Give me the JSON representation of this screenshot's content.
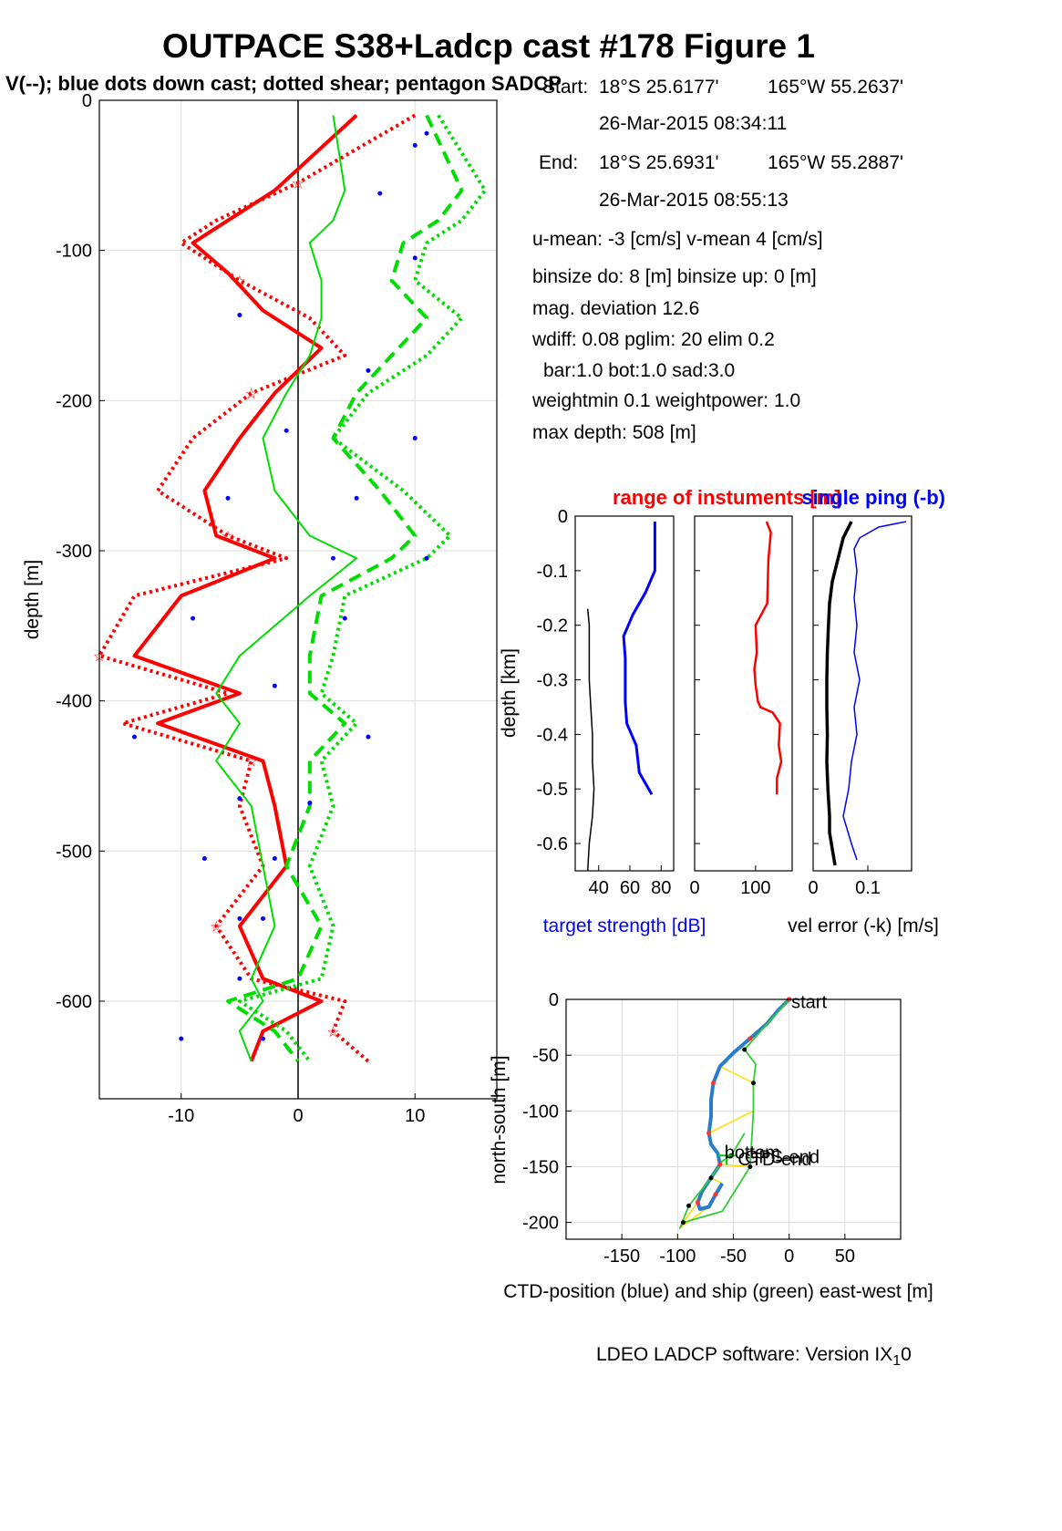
{
  "figure": {
    "title": "OUTPACE S38+Ladcp cast #178  Figure 1",
    "subtitle": "V(--); blue dots down cast; dotted shear; pentagon SADCP",
    "footer_main": "LDEO LADCP software: Version IX",
    "footer_sub": "1",
    "footer_end": "0"
  },
  "info": {
    "start_label": "Start:",
    "start_lat": "18°S 25.6177'",
    "start_lon": "165°W 55.2637'",
    "start_time": "26-Mar-2015 08:34:11",
    "end_label": "End:",
    "end_lat": "18°S 25.6931'",
    "end_lon": "165°W 55.2887'",
    "end_time": "26-Mar-2015 08:55:13",
    "umean": "u-mean:  -3 [cm/s]    v-mean   4 [cm/s]",
    "binsize": "binsize do: 8 [m]  binsize up:  0 [m]",
    "magdev": "mag. deviation 12.6",
    "wdiff": "wdiff: 0.08  pglim: 20  elim 0.2",
    "bar": "bar:1.0 bot:1.0 sad:3.0",
    "weight": "weightmin 0.1  weightpower: 1.0",
    "maxdepth": "max depth: 508 [m]"
  },
  "chart_data": [
    {
      "id": "velocity-profile",
      "type": "line",
      "ylabel": "depth [m]",
      "xlim": [
        -17,
        17
      ],
      "ylim": [
        -665,
        0
      ],
      "xticks": [
        -10,
        0,
        10
      ],
      "yticks": [
        0,
        -100,
        -200,
        -300,
        -400,
        -500,
        -600
      ],
      "grid": true,
      "colors": {
        "u": "#ff0000",
        "v": "#00dd00",
        "dots": "#0000ff"
      },
      "series": [
        {
          "component": "u",
          "style": "solid-thick",
          "x": [
            5,
            -2,
            -6,
            -9,
            -6,
            -3,
            2,
            -2,
            -5,
            -8,
            -7,
            -2,
            -10,
            -14,
            -5,
            -12,
            -3,
            -2,
            -1,
            -5,
            -3,
            2,
            -3,
            -4
          ],
          "y": [
            -10,
            -60,
            -80,
            -95,
            -115,
            -140,
            -165,
            -195,
            -225,
            -260,
            -290,
            -305,
            -330,
            -370,
            -395,
            -415,
            -440,
            -470,
            -510,
            -550,
            -585,
            -600,
            -620,
            -640
          ]
        },
        {
          "component": "u",
          "style": "dotted-thick",
          "x": [
            10,
            0,
            -7,
            -10,
            -5,
            1,
            4,
            -4,
            -9,
            -12,
            -6,
            -1,
            -14,
            -17,
            -6,
            -15,
            -4,
            -5,
            -3,
            -7,
            -4,
            4,
            3,
            6
          ],
          "y": [
            -10,
            -55,
            -80,
            -95,
            -120,
            -145,
            -170,
            -195,
            -225,
            -260,
            -290,
            -305,
            -330,
            -370,
            -395,
            -415,
            -440,
            -470,
            -510,
            -550,
            -585,
            -600,
            -620,
            -640
          ]
        },
        {
          "component": "v",
          "style": "solid",
          "x": [
            3,
            4,
            3,
            1,
            2,
            2,
            1,
            -1,
            -3,
            -2,
            1,
            5,
            1,
            -5,
            -7,
            -5,
            -7,
            -4,
            -3,
            -2,
            -4,
            -3,
            -5,
            -4
          ],
          "y": [
            -10,
            -60,
            -80,
            -95,
            -120,
            -145,
            -170,
            -195,
            -225,
            -260,
            -290,
            -305,
            -330,
            -370,
            -395,
            -415,
            -440,
            -470,
            -510,
            -550,
            -585,
            -600,
            -620,
            -640
          ]
        },
        {
          "component": "v",
          "style": "dashed-thick",
          "x": [
            11,
            14,
            12,
            9,
            8,
            11,
            8,
            5,
            3,
            7,
            10,
            8,
            2,
            1,
            1,
            4,
            1,
            1,
            -1,
            2,
            0,
            -6,
            -2,
            0
          ],
          "y": [
            -10,
            -60,
            -80,
            -95,
            -120,
            -145,
            -170,
            -195,
            -225,
            -260,
            -290,
            -305,
            -330,
            -370,
            -395,
            -415,
            -440,
            -470,
            -510,
            -550,
            -585,
            -600,
            -620,
            -640
          ]
        },
        {
          "component": "v",
          "style": "dotted-thick",
          "x": [
            12,
            16,
            14,
            11,
            10,
            14,
            11,
            6,
            3,
            9,
            13,
            11,
            4,
            3,
            2,
            5,
            2,
            3,
            1,
            3,
            2,
            -5,
            -1,
            1
          ],
          "y": [
            -10,
            -60,
            -80,
            -95,
            -120,
            -145,
            -170,
            -195,
            -225,
            -260,
            -290,
            -305,
            -330,
            -370,
            -395,
            -415,
            -440,
            -470,
            -510,
            -550,
            -585,
            -600,
            -620,
            -640
          ]
        }
      ],
      "blue_dots": [
        [
          11,
          -22
        ],
        [
          10,
          -30
        ],
        [
          7,
          -62
        ],
        [
          10,
          -105
        ],
        [
          -5,
          -143
        ],
        [
          6,
          -180
        ],
        [
          -1,
          -220
        ],
        [
          10,
          -225
        ],
        [
          -6,
          -265
        ],
        [
          5,
          -265
        ],
        [
          11,
          -305
        ],
        [
          3,
          -305
        ],
        [
          -9,
          -345
        ],
        [
          4,
          -345
        ],
        [
          -2,
          -390
        ],
        [
          -14,
          -424
        ],
        [
          6,
          -424
        ],
        [
          -5,
          -465
        ],
        [
          1,
          -468
        ],
        [
          -8,
          -505
        ],
        [
          -2,
          -505
        ],
        [
          -5,
          -545
        ],
        [
          -3,
          -545
        ],
        [
          -5,
          -585
        ],
        [
          -10,
          -625
        ],
        [
          -3,
          -625
        ]
      ]
    },
    {
      "id": "target-strength",
      "type": "line",
      "title": "range of instuments [m]",
      "title_overlap": "single ping (-b)",
      "ylabel": "depth [km]",
      "xlabel": "target strength [dB]",
      "xlim": [
        25,
        88
      ],
      "ylim": [
        -0.65,
        0
      ],
      "xticks": [
        40,
        60,
        80
      ],
      "yticks": [
        0,
        -0.1,
        -0.2,
        -0.3,
        -0.4,
        -0.5,
        -0.6
      ],
      "series": [
        {
          "name": "target strength",
          "color": "#0000ff",
          "x": [
            76,
            76,
            76,
            70,
            62,
            56,
            57,
            57,
            57,
            58,
            64,
            66,
            74
          ],
          "y": [
            -0.01,
            -0.05,
            -0.1,
            -0.14,
            -0.18,
            -0.22,
            -0.26,
            -0.3,
            -0.34,
            -0.38,
            -0.42,
            -0.47,
            -0.51
          ]
        },
        {
          "name": "range",
          "color": "#000000",
          "x": [
            33,
            34,
            34,
            34,
            35,
            36,
            36,
            37,
            36,
            34,
            33
          ],
          "y": [
            -0.17,
            -0.2,
            -0.25,
            -0.3,
            -0.35,
            -0.4,
            -0.45,
            -0.5,
            -0.55,
            -0.6,
            -0.65
          ]
        }
      ]
    },
    {
      "id": "instrument-range",
      "type": "line",
      "xlim": [
        0,
        160
      ],
      "ylim": [
        -0.65,
        0
      ],
      "xticks": [
        0,
        100
      ],
      "yticks": [
        0,
        -0.1,
        -0.2,
        -0.3,
        -0.4,
        -0.5,
        -0.6
      ],
      "series": [
        {
          "name": "range",
          "color": "#ff0000",
          "x": [
            118,
            125,
            121,
            120,
            119,
            100,
            102,
            98,
            100,
            104,
            108,
            128,
            140,
            138,
            142,
            135,
            135
          ],
          "y": [
            -0.01,
            -0.03,
            -0.08,
            -0.12,
            -0.16,
            -0.2,
            -0.25,
            -0.28,
            -0.31,
            -0.34,
            -0.35,
            -0.36,
            -0.38,
            -0.42,
            -0.45,
            -0.48,
            -0.51
          ]
        }
      ]
    },
    {
      "id": "velocity-error",
      "type": "line",
      "xlabel": "vel error (-k) [m/s]",
      "xlim": [
        0,
        0.18
      ],
      "ylim": [
        -0.65,
        0
      ],
      "xticks": [
        0,
        0.1
      ],
      "yticks": [
        0,
        -0.1,
        -0.2,
        -0.3,
        -0.4,
        -0.5,
        -0.6
      ],
      "series": [
        {
          "name": "vel error",
          "color": "#000000",
          "x": [
            0.07,
            0.055,
            0.045,
            0.035,
            0.03,
            0.028,
            0.026,
            0.025,
            0.025,
            0.026,
            0.025,
            0.027,
            0.03,
            0.03,
            0.035,
            0.04
          ],
          "y": [
            -0.01,
            -0.04,
            -0.08,
            -0.12,
            -0.16,
            -0.2,
            -0.25,
            -0.3,
            -0.35,
            -0.4,
            -0.45,
            -0.5,
            -0.55,
            -0.58,
            -0.61,
            -0.64
          ]
        },
        {
          "name": "single ping",
          "color": "#0000ff",
          "x": [
            0.17,
            0.12,
            0.085,
            0.075,
            0.08,
            0.075,
            0.08,
            0.075,
            0.085,
            0.075,
            0.08,
            0.07,
            0.065,
            0.055,
            0.07,
            0.08
          ],
          "y": [
            -0.01,
            -0.02,
            -0.04,
            -0.06,
            -0.1,
            -0.15,
            -0.2,
            -0.25,
            -0.3,
            -0.35,
            -0.4,
            -0.45,
            -0.5,
            -0.55,
            -0.6,
            -0.63
          ]
        }
      ]
    },
    {
      "id": "ctd-position",
      "type": "line",
      "xlabel": "CTD-position (blue) and ship (green) east-west [m]",
      "ylabel": "north-south [m]",
      "xlim": [
        -200,
        100
      ],
      "ylim": [
        -215,
        0
      ],
      "xticks": [
        -150,
        -100,
        -50,
        0,
        50
      ],
      "yticks": [
        0,
        -50,
        -100,
        -150,
        -200
      ],
      "grid": true,
      "annotations": [
        {
          "text": "start",
          "x": 2,
          "y": -2
        },
        {
          "text": "bottom",
          "x": -58,
          "y": -137
        },
        {
          "text": "GPS-end",
          "x": -40,
          "y": -141
        },
        {
          "text": "CTD-end",
          "x": -46,
          "y": -143
        }
      ],
      "series": [
        {
          "name": "CTD-position",
          "color": "#2a7dc8",
          "x": [
            0,
            -10,
            -20,
            -35,
            -50,
            -62,
            -68,
            -70,
            -70,
            -72,
            -70,
            -64,
            -62,
            -70,
            -78,
            -82,
            -80,
            -72,
            -66,
            -60
          ],
          "y": [
            0,
            -10,
            -22,
            -35,
            -48,
            -60,
            -75,
            -90,
            -105,
            -120,
            -130,
            -138,
            -148,
            -160,
            -172,
            -182,
            -188,
            -186,
            -175,
            -165
          ]
        },
        {
          "name": "ship",
          "color": "#33cc33",
          "x": [
            0,
            -25,
            -40,
            -30,
            -32,
            -32,
            -35,
            -60,
            -95,
            -98,
            -90,
            -78,
            -70,
            -60,
            -52,
            -40
          ],
          "y": [
            0,
            -28,
            -45,
            -58,
            -75,
            -100,
            -150,
            -190,
            -200,
            -205,
            -185,
            -170,
            -160,
            -145,
            -140,
            -120
          ]
        }
      ],
      "bottom_marker": [
        -56,
        -140
      ]
    }
  ]
}
